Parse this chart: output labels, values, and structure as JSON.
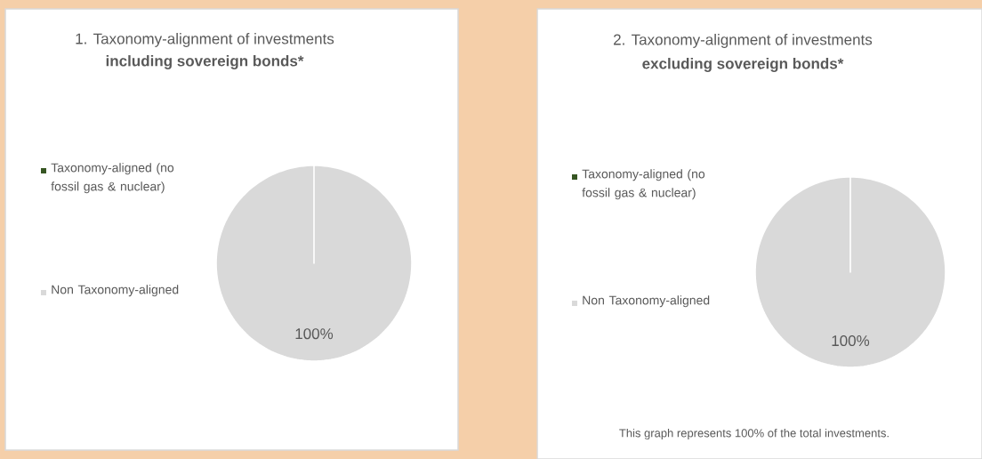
{
  "chart_data": [
    {
      "type": "pie",
      "title": "1. Taxonomy-alignment of investments",
      "subtitle": "including sovereign bonds*",
      "categories": [
        "Taxonomy-aligned (no fossil gas & nuclear)",
        "Non Taxonomy-aligned"
      ],
      "values": [
        0,
        100
      ],
      "colors": [
        "#375623",
        "#d9d9d9"
      ],
      "value_labels": [
        null,
        "100%"
      ],
      "legend": "left"
    },
    {
      "type": "pie",
      "title": "2. Taxonomy-alignment of investments",
      "subtitle": "excluding sovereign bonds*",
      "categories": [
        "Taxonomy-aligned (no fossil gas & nuclear)",
        "Non Taxonomy-aligned"
      ],
      "values": [
        0,
        100
      ],
      "colors": [
        "#375623",
        "#d9d9d9"
      ],
      "value_labels": [
        null,
        "100%"
      ],
      "legend": "left",
      "annotations": [
        "This graph represents 100% of the total investments."
      ]
    }
  ]
}
